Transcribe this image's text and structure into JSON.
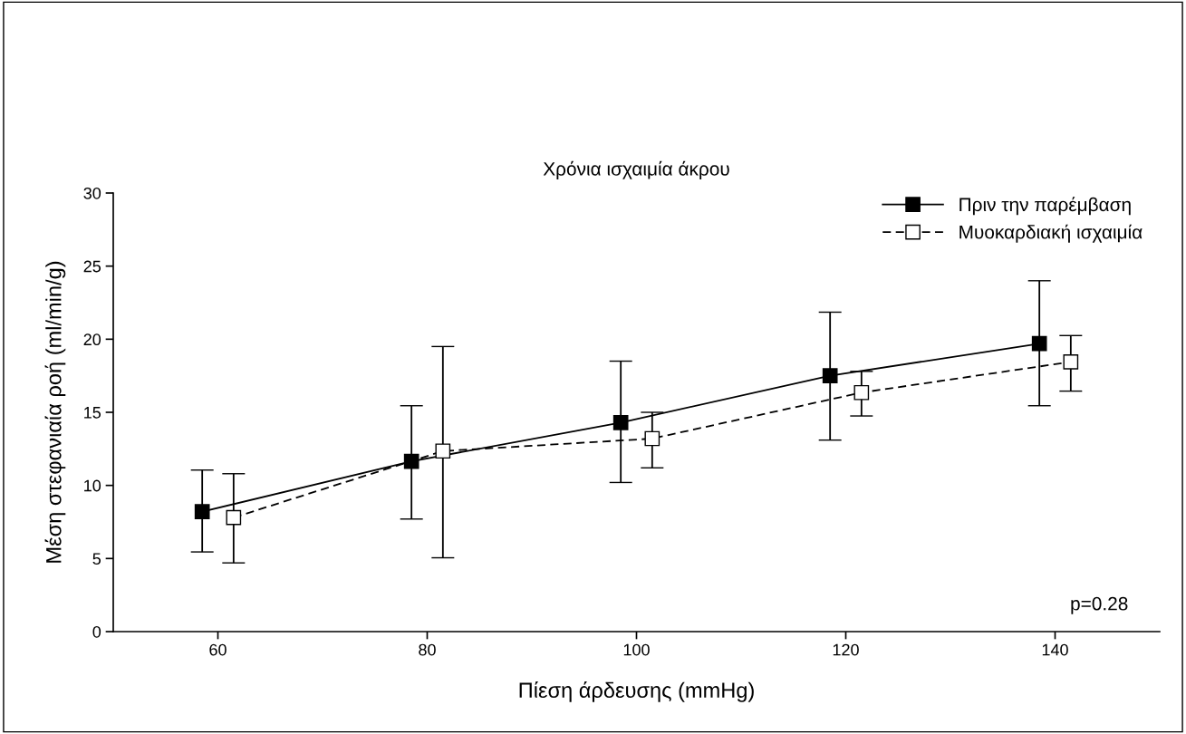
{
  "chart_data": {
    "type": "line",
    "title": "Χρόνια ισχαιμία άκρου",
    "xlabel": "Πίεση άρδευσης (mmHg)",
    "ylabel": "Μέση στεφανιαία ροή (ml/min/g)",
    "annotations": [
      "p=0.28"
    ],
    "xlim": [
      50,
      150
    ],
    "xticks": [
      60,
      80,
      100,
      120,
      140
    ],
    "ylim": [
      0,
      30
    ],
    "yticks": [
      0,
      5,
      10,
      15,
      20,
      25,
      30
    ],
    "grid": false,
    "legend": "top right",
    "marker": "square",
    "series": [
      {
        "name": "Πριν την παρέμβαση",
        "color": "#000000",
        "line_style": "solid",
        "x": [
          58.5,
          78.5,
          98.5,
          118.5,
          138.5
        ],
        "values": [
          8.2,
          11.65,
          14.3,
          17.5,
          19.7
        ],
        "errors": [
          [
            5.45,
            11.05
          ],
          [
            7.7,
            15.45
          ],
          [
            10.2,
            18.5
          ],
          [
            13.1,
            21.85
          ],
          [
            15.45,
            24.0
          ]
        ]
      },
      {
        "name": "Μυοκαρδιακή ισχαιμία",
        "color": "#ffffff",
        "line_style": "dashed",
        "x": [
          61.5,
          81.5,
          101.5,
          121.5,
          141.5
        ],
        "values": [
          7.8,
          12.35,
          13.2,
          16.35,
          18.45
        ],
        "errors": [
          [
            4.7,
            10.8
          ],
          [
            5.05,
            19.5
          ],
          [
            11.2,
            15.0
          ],
          [
            14.75,
            17.8
          ],
          [
            16.45,
            20.25
          ]
        ]
      }
    ]
  }
}
